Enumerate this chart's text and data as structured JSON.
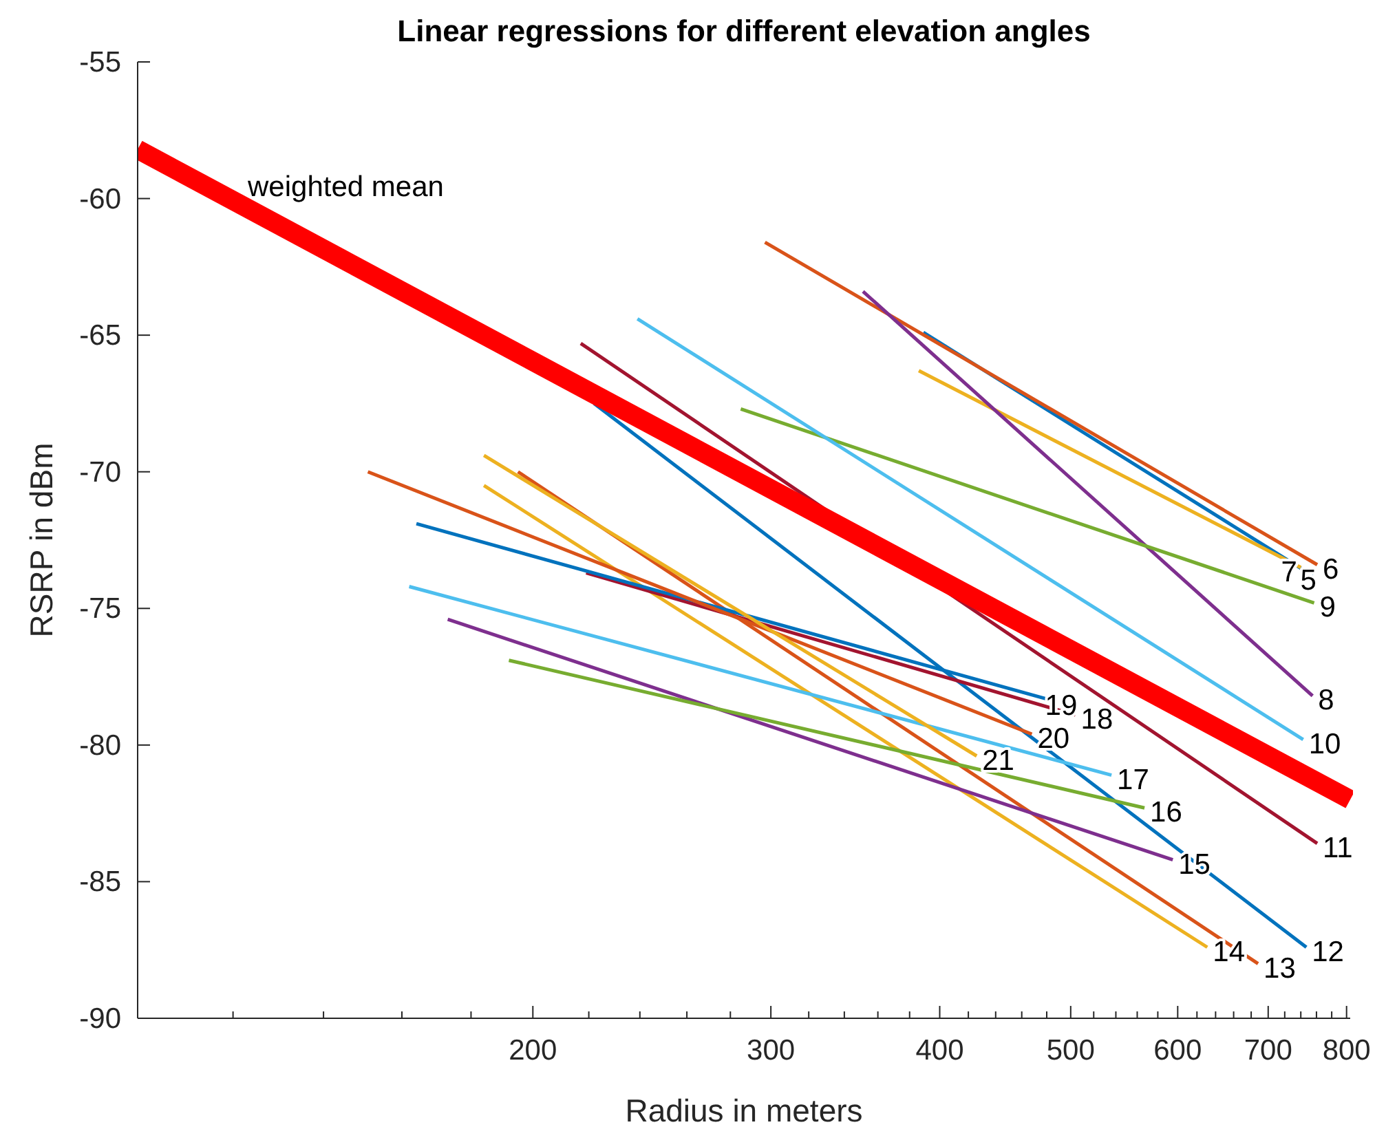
{
  "chart_data": {
    "type": "line",
    "title": "Linear regressions for different elevation angles",
    "xlabel": "Radius in meters",
    "ylabel": "RSRP in dBm",
    "log": "x",
    "grid": false,
    "legend": false,
    "marker": "none",
    "line_style": "solid",
    "xlim": [
      102,
      805
    ],
    "ylim": [
      -90,
      -55
    ],
    "xticks": [
      {
        "value": 120,
        "label": null
      },
      {
        "value": 140,
        "label": null
      },
      {
        "value": 160,
        "label": null
      },
      {
        "value": 180,
        "label": null
      },
      200,
      {
        "value": 220,
        "label": null
      },
      {
        "value": 240,
        "label": null
      },
      {
        "value": 260,
        "label": null
      },
      {
        "value": 280,
        "label": null
      },
      300,
      {
        "value": 320,
        "label": null
      },
      {
        "value": 340,
        "label": null
      },
      {
        "value": 360,
        "label": null
      },
      {
        "value": 380,
        "label": null
      },
      400,
      {
        "value": 420,
        "label": null
      },
      {
        "value": 440,
        "label": null
      },
      {
        "value": 460,
        "label": null
      },
      {
        "value": 480,
        "label": null
      },
      500,
      {
        "value": 520,
        "label": null
      },
      {
        "value": 540,
        "label": null
      },
      {
        "value": 560,
        "label": null
      },
      {
        "value": 580,
        "label": null
      },
      600,
      {
        "value": 620,
        "label": null
      },
      {
        "value": 640,
        "label": null
      },
      {
        "value": 660,
        "label": null
      },
      {
        "value": 680,
        "label": null
      },
      700,
      {
        "value": 720,
        "label": null
      },
      {
        "value": 740,
        "label": null
      },
      {
        "value": 760,
        "label": null
      },
      {
        "value": 780,
        "label": null
      },
      800
    ],
    "yticks": [
      -90,
      -85,
      -80,
      -75,
      -70,
      -65,
      -60,
      -55
    ],
    "series": [
      {
        "name": "5",
        "color": "#0072bd",
        "x": [
          389,
          755
        ],
        "values": [
          -64.9,
          -73.8
        ]
      },
      {
        "name": "6",
        "color": "#d95319",
        "x": [
          297,
          761
        ],
        "values": [
          -61.6,
          -73.4
        ]
      },
      {
        "name": "7",
        "color": "#edb120",
        "x": [
          386,
          740
        ],
        "values": [
          -66.3,
          -73.5
        ]
      },
      {
        "name": "8",
        "color": "#7e2f8e",
        "x": [
          351,
          755
        ],
        "values": [
          -63.4,
          -78.2
        ]
      },
      {
        "name": "9",
        "color": "#77ac30",
        "x": [
          285,
          757
        ],
        "values": [
          -67.7,
          -74.8
        ]
      },
      {
        "name": "10",
        "color": "#4dbeee",
        "x": [
          239,
          743
        ],
        "values": [
          -64.4,
          -79.8
        ]
      },
      {
        "name": "11",
        "color": "#a2142f",
        "x": [
          217,
          761
        ],
        "values": [
          -65.3,
          -83.6
        ]
      },
      {
        "name": "12",
        "color": "#0072bd",
        "x": [
          222,
          747
        ],
        "values": [
          -67.5,
          -87.4
        ]
      },
      {
        "name": "13",
        "color": "#d95319",
        "x": [
          195,
          688
        ],
        "values": [
          -70.0,
          -88.0
        ]
      },
      {
        "name": "14",
        "color": "#edb120",
        "x": [
          184,
          631
        ],
        "values": [
          -70.5,
          -87.4
        ]
      },
      {
        "name": "15",
        "color": "#7e2f8e",
        "x": [
          173,
          595
        ],
        "values": [
          -75.4,
          -84.2
        ]
      },
      {
        "name": "16",
        "color": "#77ac30",
        "x": [
          192,
          567
        ],
        "values": [
          -76.9,
          -82.3
        ]
      },
      {
        "name": "17",
        "color": "#4dbeee",
        "x": [
          162,
          536
        ],
        "values": [
          -74.2,
          -81.1
        ]
      },
      {
        "name": "18",
        "color": "#a2142f",
        "x": [
          219,
          504
        ],
        "values": [
          -73.7,
          -78.9
        ]
      },
      {
        "name": "19",
        "color": "#0072bd",
        "x": [
          164,
          487
        ],
        "values": [
          -71.9,
          -78.4
        ]
      },
      {
        "name": "20",
        "color": "#d95319",
        "x": [
          151,
          468
        ],
        "values": [
          -70.0,
          -79.6
        ]
      },
      {
        "name": "21",
        "color": "#edb120",
        "x": [
          184,
          426
        ],
        "values": [
          -69.4,
          -80.4
        ]
      },
      {
        "name": "weighted mean",
        "color": "#ff0000",
        "x": [
          102,
          805
        ],
        "values": [
          -58.2,
          -82.0
        ]
      }
    ]
  }
}
